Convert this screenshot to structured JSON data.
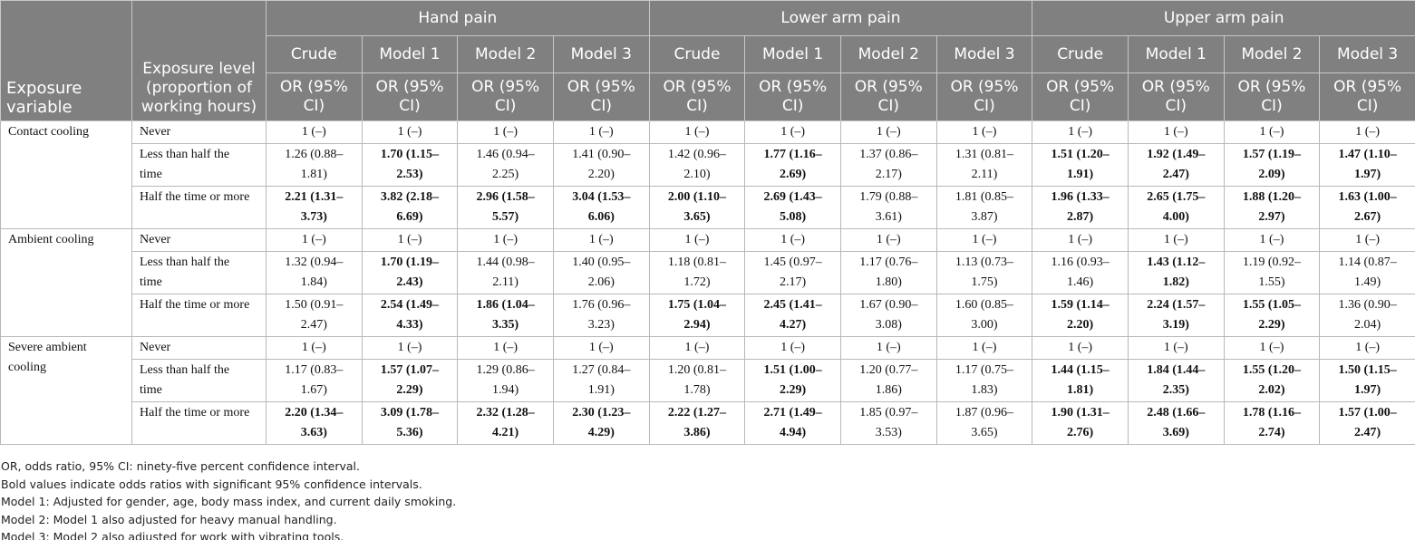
{
  "header": {
    "variable": "Exposure variable",
    "level": "Exposure level (proportion of working hours)",
    "groups": [
      {
        "name": "Hand pain",
        "columns": [
          "Crude",
          "Model 1",
          "Model 2",
          "Model 3"
        ],
        "stats": [
          "OR (95% CI)",
          "OR (95% CI)",
          "OR (95% CI)",
          "OR (95% CI)"
        ]
      },
      {
        "name": "Lower arm pain",
        "columns": [
          "Crude",
          "Model 1",
          "Model 2",
          "Model 3"
        ],
        "stats": [
          "OR (95% CI)",
          "OR (95% CI)",
          "OR (95% CI)",
          "OR (95% CI)"
        ]
      },
      {
        "name": "Upper arm pain",
        "columns": [
          "Crude",
          "Model 1",
          "Model 2",
          "Model 3"
        ],
        "stats": [
          "OR (95% CI)",
          "OR (95% CI)",
          "OR (95% CI)",
          "OR (95% CI)"
        ]
      }
    ]
  },
  "table": {
    "groups": [
      {
        "variable": "Contact cooling",
        "rows": [
          {
            "level": "Never",
            "cells": [
              "1 (–)",
              "1 (–)",
              "1 (–)",
              "1 (–)",
              "1 (–)",
              "1 (–)",
              "1 (–)",
              "1 (–)",
              "1 (–)",
              "1 (–)",
              "1 (–)",
              "1 (–)"
            ],
            "bold": [
              false,
              false,
              false,
              false,
              false,
              false,
              false,
              false,
              false,
              false,
              false,
              false
            ]
          },
          {
            "level": "Less than half the time",
            "cells": [
              "1.26 (0.88–1.81)",
              "1.70 (1.15–2.53)",
              "1.46 (0.94–2.25)",
              "1.41 (0.90–2.20)",
              "1.42 (0.96–2.10)",
              "1.77 (1.16–2.69)",
              "1.37 (0.86–2.17)",
              "1.31 (0.81–2.11)",
              "1.51 (1.20–1.91)",
              "1.92 (1.49–2.47)",
              "1.57 (1.19–2.09)",
              "1.47 (1.10–1.97)"
            ],
            "bold": [
              false,
              true,
              false,
              false,
              false,
              true,
              false,
              false,
              true,
              true,
              true,
              true
            ]
          },
          {
            "level": "Half the time or more",
            "cells": [
              "2.21 (1.31–3.73)",
              "3.82 (2.18–6.69)",
              "2.96 (1.58–5.57)",
              "3.04 (1.53–6.06)",
              "2.00 (1.10–3.65)",
              "2.69 (1.43–5.08)",
              "1.79 (0.88–3.61)",
              "1.81 (0.85–3.87)",
              "1.96 (1.33–2.87)",
              "2.65 (1.75–4.00)",
              "1.88 (1.20–2.97)",
              "1.63 (1.00–2.67)"
            ],
            "bold": [
              true,
              true,
              true,
              true,
              true,
              true,
              false,
              false,
              true,
              true,
              true,
              true
            ]
          }
        ]
      },
      {
        "variable": "Ambient cooling",
        "rows": [
          {
            "level": "Never",
            "cells": [
              "1 (–)",
              "1 (–)",
              "1 (–)",
              "1 (–)",
              "1 (–)",
              "1 (–)",
              "1 (–)",
              "1 (–)",
              "1 (–)",
              "1 (–)",
              "1 (–)",
              "1 (–)"
            ],
            "bold": [
              false,
              false,
              false,
              false,
              false,
              false,
              false,
              false,
              false,
              false,
              false,
              false
            ]
          },
          {
            "level": "Less than half the time",
            "cells": [
              "1.32 (0.94–1.84)",
              "1.70 (1.19–2.43)",
              "1.44 (0.98–2.11)",
              "1.40 (0.95–2.06)",
              "1.18 (0.81–1.72)",
              "1.45 (0.97–2.17)",
              "1.17 (0.76–1.80)",
              "1.13 (0.73–1.75)",
              "1.16 (0.93–1.46)",
              "1.43 (1.12–1.82)",
              "1.19 (0.92–1.55)",
              "1.14 (0.87–1.49)"
            ],
            "bold": [
              false,
              true,
              false,
              false,
              false,
              false,
              false,
              false,
              false,
              true,
              false,
              false
            ]
          },
          {
            "level": "Half the time or more",
            "cells": [
              "1.50 (0.91–2.47)",
              "2.54 (1.49–4.33)",
              "1.86 (1.04–3.35)",
              "1.76 (0.96–3.23)",
              "1.75 (1.04–2.94)",
              "2.45 (1.41–4.27)",
              "1.67 (0.90–3.08)",
              "1.60 (0.85–3.00)",
              "1.59 (1.14–2.20)",
              "2.24 (1.57–3.19)",
              "1.55 (1.05–2.29)",
              "1.36 (0.90–2.04)"
            ],
            "bold": [
              false,
              true,
              true,
              false,
              true,
              true,
              false,
              false,
              true,
              true,
              true,
              false
            ]
          }
        ]
      },
      {
        "variable": "Severe ambient cooling",
        "rows": [
          {
            "level": "Never",
            "cells": [
              "1 (–)",
              "1 (–)",
              "1 (–)",
              "1 (–)",
              "1 (–)",
              "1 (–)",
              "1 (–)",
              "1 (–)",
              "1 (–)",
              "1 (–)",
              "1 (–)",
              "1 (–)"
            ],
            "bold": [
              false,
              false,
              false,
              false,
              false,
              false,
              false,
              false,
              false,
              false,
              false,
              false
            ]
          },
          {
            "level": "Less than half the time",
            "cells": [
              "1.17 (0.83–1.67)",
              "1.57 (1.07–2.29)",
              "1.29 (0.86–1.94)",
              "1.27 (0.84–1.91)",
              "1.20 (0.81–1.78)",
              "1.51 (1.00–2.29)",
              "1.20 (0.77–1.86)",
              "1.17 (0.75–1.83)",
              "1.44 (1.15–1.81)",
              "1.84 (1.44–2.35)",
              "1.55 (1.20–2.02)",
              "1.50 (1.15–1.97)"
            ],
            "bold": [
              false,
              true,
              false,
              false,
              false,
              true,
              false,
              false,
              true,
              true,
              true,
              true
            ]
          },
          {
            "level": "Half the time or more",
            "cells": [
              "2.20 (1.34–3.63)",
              "3.09 (1.78–5.36)",
              "2.32 (1.28–4.21)",
              "2.30 (1.23–4.29)",
              "2.22 (1.27–3.86)",
              "2.71 (1.49–4.94)",
              "1.85 (0.97–3.53)",
              "1.87 (0.96–3.65)",
              "1.90 (1.31–2.76)",
              "2.48 (1.66–3.69)",
              "1.78 (1.16–2.74)",
              "1.57 (1.00–2.47)"
            ],
            "bold": [
              true,
              true,
              true,
              true,
              true,
              true,
              false,
              false,
              true,
              true,
              true,
              true
            ]
          }
        ]
      }
    ]
  },
  "footnotes": [
    "OR, odds ratio, 95% CI: ninety-five percent confidence interval.",
    "Bold values indicate odds ratios with significant 95% confidence intervals.",
    "Model 1: Adjusted for gender, age, body mass index, and current daily smoking.",
    "Model 2: Model 1 also adjusted for heavy manual handling.",
    "Model 3: Model 2 also adjusted for work with vibrating tools."
  ]
}
